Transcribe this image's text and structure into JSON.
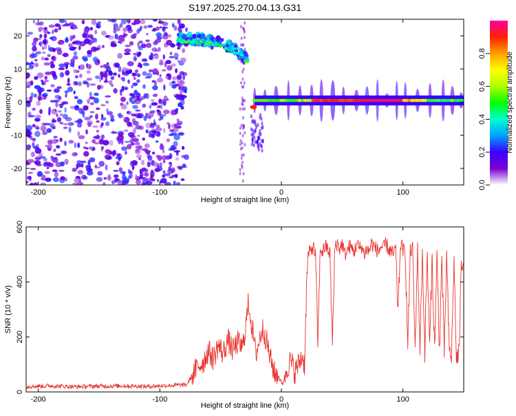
{
  "title": "S197.2025.270.04.13.G31",
  "colors": {
    "snr_line": "#e8332e",
    "axis": "#000000"
  },
  "chart_data": [
    {
      "type": "heatmap",
      "name": "spectrogram",
      "xlabel": "Height of straight line (km)",
      "ylabel": "Frequency (Hz)",
      "xlim": [
        -210,
        150
      ],
      "ylim": [
        -25,
        25
      ],
      "xticks": [
        -200,
        -100,
        0,
        100
      ],
      "yticks": [
        -20,
        -10,
        0,
        10,
        20
      ],
      "colorbar": {
        "label": "Normalized spectral amplitude",
        "range": [
          0,
          1
        ],
        "ticks": [
          0.0,
          0.2,
          0.4,
          0.6,
          0.8
        ],
        "colormap": [
          "#ffffff",
          "#7b00d4",
          "#3a00ff",
          "#00a0ff",
          "#00ffd0",
          "#00ff00",
          "#b0ff00",
          "#ffff00",
          "#ffa000",
          "#ff2000",
          "#ff00a0"
        ]
      },
      "features": [
        {
          "label": "noise floor",
          "x_range": [
            -210,
            -78
          ],
          "freq_range": [
            -25,
            25
          ],
          "amplitude": 0.15
        },
        {
          "label": "signal segment 1",
          "x_range": [
            -85,
            -28
          ],
          "freq_start": 19,
          "freq_end": 13,
          "amplitude": 0.55
        },
        {
          "label": "signal segment 2",
          "x_range": [
            -25,
            150
          ],
          "freq": 0.5,
          "amplitude": 0.95
        }
      ]
    },
    {
      "type": "line",
      "name": "snr",
      "xlabel": "Height of straight line (km)",
      "ylabel": "SNR (10 * v/v)",
      "xlim": [
        -210,
        150
      ],
      "ylim": [
        0,
        600
      ],
      "xticks": [
        -200,
        -100,
        0,
        100
      ],
      "yticks": [
        0,
        200,
        400,
        600
      ],
      "series": [
        {
          "name": "SNR",
          "color": "#e8332e",
          "x": [
            -210,
            -190,
            -170,
            -150,
            -130,
            -110,
            -90,
            -78,
            -72,
            -68,
            -64,
            -60,
            -56,
            -52,
            -48,
            -44,
            -40,
            -36,
            -32,
            -29,
            -27,
            -25,
            -23,
            -21,
            -19,
            -17,
            -15,
            -13,
            -11,
            -9,
            -7,
            -5,
            -3,
            -1,
            1,
            3,
            5,
            7,
            9,
            11,
            13,
            15,
            17,
            19,
            21,
            22,
            24,
            26,
            28,
            30,
            32,
            34,
            36,
            38,
            40,
            42,
            44,
            46,
            48,
            50,
            52,
            54,
            56,
            58,
            60,
            62,
            64,
            66,
            68,
            70,
            72,
            74,
            76,
            78,
            80,
            82,
            84,
            86,
            88,
            90,
            92,
            94,
            96,
            98,
            100,
            102,
            104,
            106,
            108,
            110,
            112,
            114,
            116,
            118,
            120,
            122,
            124,
            126,
            128,
            130,
            132,
            134,
            136,
            138,
            140,
            142,
            144,
            146,
            148,
            150
          ],
          "values": [
            20,
            22,
            19,
            21,
            22,
            20,
            24,
            26,
            70,
            95,
            110,
            150,
            120,
            170,
            140,
            190,
            150,
            180,
            160,
            250,
            330,
            260,
            200,
            140,
            170,
            210,
            230,
            200,
            160,
            120,
            90,
            60,
            70,
            40,
            30,
            60,
            90,
            110,
            100,
            70,
            90,
            110,
            130,
            100,
            420,
            500,
            510,
            530,
            500,
            180,
            520,
            510,
            530,
            520,
            500,
            170,
            530,
            540,
            520,
            540,
            500,
            510,
            530,
            520,
            510,
            540,
            520,
            530,
            500,
            520,
            510,
            540,
            530,
            520,
            510,
            530,
            520,
            540,
            520,
            510,
            500,
            520,
            290,
            540,
            520,
            500,
            160,
            510,
            520,
            150,
            520,
            160,
            510,
            150,
            500,
            160,
            490,
            150,
            500,
            150,
            490,
            140,
            500,
            150,
            130,
            480,
            120,
            130,
            460,
            470
          ]
        }
      ]
    }
  ]
}
